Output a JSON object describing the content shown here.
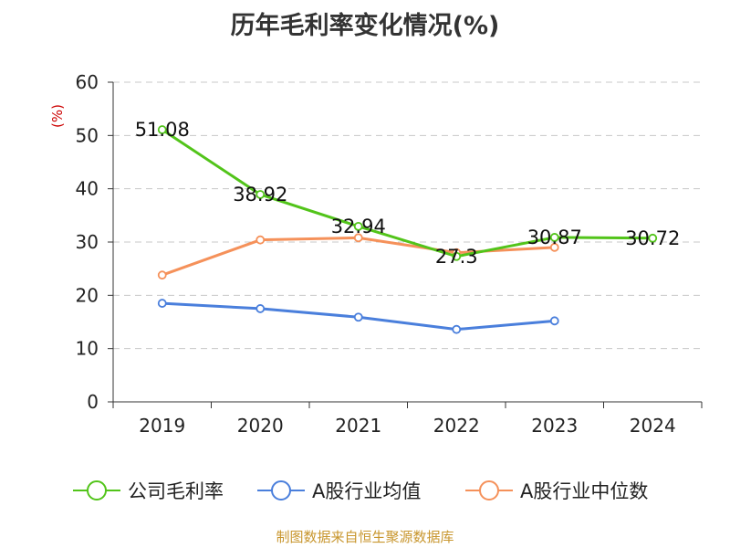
{
  "chart_data": {
    "type": "line",
    "title": "历年毛利率变化情况(%)",
    "ylabel": "(%)",
    "xlabel": "",
    "categories": [
      "2019",
      "2020",
      "2021",
      "2022",
      "2023",
      "2024"
    ],
    "ylim": [
      0,
      60
    ],
    "yticks": [
      0,
      10,
      20,
      30,
      40,
      50,
      60
    ],
    "grid": true,
    "legend_position": "bottom",
    "series": [
      {
        "name": "公司毛利率",
        "color": "#52c41a",
        "values": [
          51.08,
          38.92,
          32.94,
          27.3,
          30.87,
          30.72
        ],
        "labels": [
          "51.08",
          "38.92",
          "32.94",
          "27.3",
          "30.87",
          "30.72"
        ]
      },
      {
        "name": "A股行业均值",
        "color": "#4a7fdc",
        "values": [
          18.5,
          17.5,
          15.9,
          13.6,
          15.2,
          null
        ]
      },
      {
        "name": "A股行业中位数",
        "color": "#f5915a",
        "values": [
          23.8,
          30.4,
          30.8,
          28.0,
          29.0,
          null
        ]
      }
    ]
  },
  "source_note": "制图数据来自恒生聚源数据库"
}
